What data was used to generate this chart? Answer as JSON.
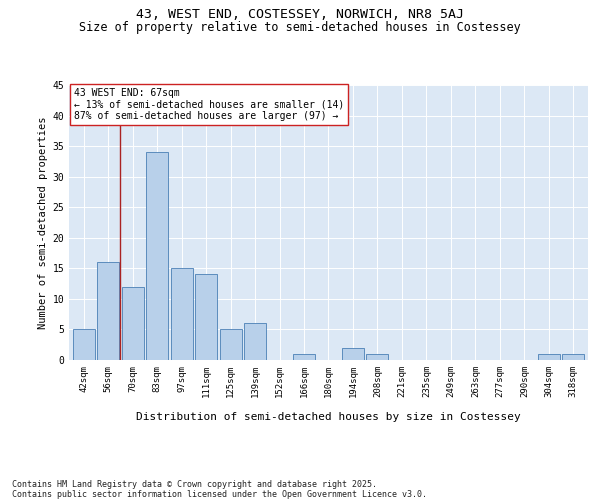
{
  "title": "43, WEST END, COSTESSEY, NORWICH, NR8 5AJ",
  "subtitle": "Size of property relative to semi-detached houses in Costessey",
  "xlabel": "Distribution of semi-detached houses by size in Costessey",
  "ylabel": "Number of semi-detached properties",
  "footer_line1": "Contains HM Land Registry data © Crown copyright and database right 2025.",
  "footer_line2": "Contains public sector information licensed under the Open Government Licence v3.0.",
  "annotation_title": "43 WEST END: 67sqm",
  "annotation_line1": "← 13% of semi-detached houses are smaller (14)",
  "annotation_line2": "87% of semi-detached houses are larger (97) →",
  "bar_labels": [
    "42sqm",
    "56sqm",
    "70sqm",
    "83sqm",
    "97sqm",
    "111sqm",
    "125sqm",
    "139sqm",
    "152sqm",
    "166sqm",
    "180sqm",
    "194sqm",
    "208sqm",
    "221sqm",
    "235sqm",
    "249sqm",
    "263sqm",
    "277sqm",
    "290sqm",
    "304sqm",
    "318sqm"
  ],
  "bar_values": [
    5,
    16,
    12,
    34,
    15,
    14,
    5,
    6,
    0,
    1,
    0,
    2,
    1,
    0,
    0,
    0,
    0,
    0,
    0,
    1,
    1
  ],
  "bar_color": "#b8d0ea",
  "bar_edge_color": "#4a7fb5",
  "vline_x": 1.5,
  "vline_color": "#aa2222",
  "ylim": [
    0,
    45
  ],
  "yticks": [
    0,
    5,
    10,
    15,
    20,
    25,
    30,
    35,
    40,
    45
  ],
  "bg_color": "#dce8f5",
  "grid_color": "#ffffff",
  "title_fontsize": 9.5,
  "subtitle_fontsize": 8.5,
  "ylabel_fontsize": 7.5,
  "xlabel_fontsize": 8,
  "tick_fontsize": 6.5,
  "annotation_fontsize": 7,
  "footer_fontsize": 6
}
